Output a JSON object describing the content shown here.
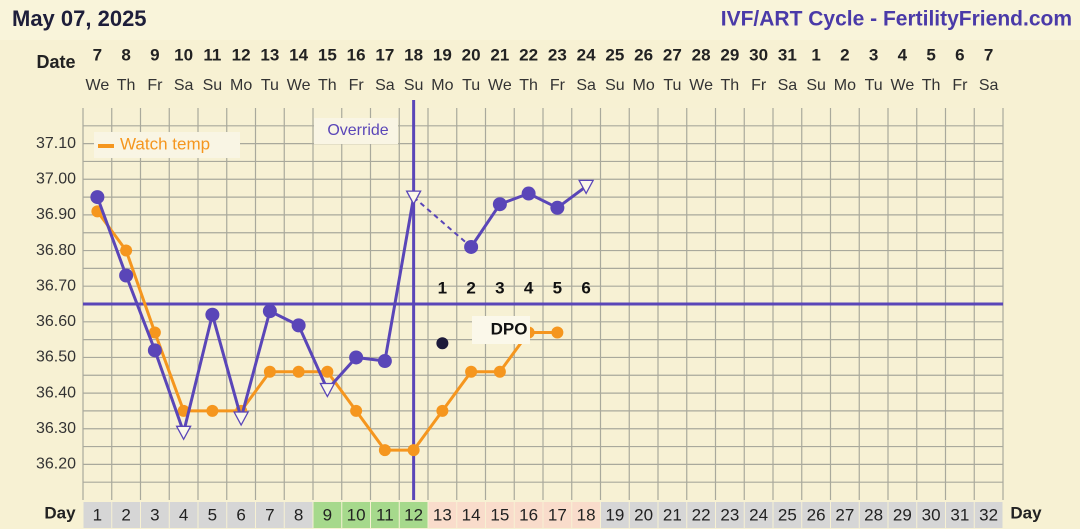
{
  "chart_data": {
    "type": "line",
    "title": "May 07, 2025",
    "subtitle": "IVF/ART Cycle - FertilityFriend.com",
    "date_label": "Date",
    "day_label": "Day",
    "override_label": "Override",
    "dpo_label": "DPO",
    "categories": [
      "1",
      "2",
      "3",
      "4",
      "5",
      "6",
      "7",
      "8",
      "9",
      "10",
      "11",
      "12",
      "13",
      "14",
      "15",
      "16",
      "17",
      "18",
      "19",
      "20",
      "21",
      "22",
      "23",
      "24",
      "25",
      "26",
      "27",
      "28",
      "29",
      "30",
      "31",
      "32"
    ],
    "dates": [
      "7",
      "8",
      "9",
      "10",
      "11",
      "12",
      "13",
      "14",
      "15",
      "16",
      "17",
      "18",
      "19",
      "20",
      "21",
      "22",
      "23",
      "24",
      "25",
      "26",
      "27",
      "28",
      "29",
      "30",
      "31",
      "1",
      "2",
      "3",
      "4",
      "5",
      "6",
      "7"
    ],
    "weekdays": [
      "We",
      "Th",
      "Fr",
      "Sa",
      "Su",
      "Mo",
      "Tu",
      "We",
      "Th",
      "Fr",
      "Sa",
      "Su",
      "Mo",
      "Tu",
      "We",
      "Th",
      "Fr",
      "Sa",
      "Su",
      "Mo",
      "Tu",
      "We",
      "Th",
      "Fr",
      "Sa",
      "Su",
      "Mo",
      "Tu",
      "We",
      "Th",
      "Fr",
      "Sa"
    ],
    "day_colors": [
      "#d6d6d6",
      "#d6d6d6",
      "#d6d6d6",
      "#d6d6d6",
      "#d6d6d6",
      "#d6d6d6",
      "#d6d6d6",
      "#d6d6d6",
      "#a6d98c",
      "#a6d98c",
      "#a6d98c",
      "#a6d98c",
      "#f9dccb",
      "#f9dccb",
      "#f9dccb",
      "#f9dccb",
      "#f9dccb",
      "#f9dccb",
      "#d6d6d6",
      "#d6d6d6",
      "#d6d6d6",
      "#d6d6d6",
      "#d6d6d6",
      "#d6d6d6",
      "#d6d6d6",
      "#d6d6d6",
      "#d6d6d6",
      "#d6d6d6",
      "#d6d6d6",
      "#d6d6d6",
      "#d6d6d6",
      "#d6d6d6"
    ],
    "dpo_values": [
      null,
      null,
      null,
      null,
      null,
      null,
      null,
      null,
      null,
      null,
      null,
      null,
      1,
      2,
      3,
      4,
      5,
      6,
      null,
      null,
      null,
      null,
      null,
      null,
      null,
      null,
      null,
      null,
      null,
      null,
      null,
      null
    ],
    "ylim": [
      36.1,
      37.2
    ],
    "yticks": [
      {
        "value": 36.2,
        "label": "36.20"
      },
      {
        "value": 36.3,
        "label": "36.30"
      },
      {
        "value": 36.4,
        "label": "36.40"
      },
      {
        "value": 36.5,
        "label": "36.50"
      },
      {
        "value": 36.6,
        "label": "36.60"
      },
      {
        "value": 36.7,
        "label": "36.70"
      },
      {
        "value": 36.8,
        "label": "36.80"
      },
      {
        "value": 36.9,
        "label": "36.90"
      },
      {
        "value": 37.0,
        "label": "37.00"
      },
      {
        "value": 37.1,
        "label": "37.10"
      }
    ],
    "grid": true,
    "coverline": 36.65,
    "coverline_color": "#5a46b8",
    "series": [
      {
        "color": "#5a46b8",
        "values": [
          36.95,
          36.73,
          36.52,
          36.29,
          36.62,
          36.33,
          36.63,
          36.59,
          36.41,
          36.5,
          36.49,
          36.95,
          null,
          36.81,
          36.93,
          36.96,
          36.92,
          36.98,
          null,
          null,
          null,
          null,
          null,
          null,
          null,
          null,
          null,
          null,
          null,
          null,
          null,
          null
        ],
        "open_triangles": [
          false,
          false,
          false,
          true,
          false,
          true,
          false,
          false,
          true,
          false,
          false,
          true,
          false,
          false,
          false,
          false,
          false,
          true,
          false,
          false,
          false,
          false,
          false,
          false,
          false,
          false,
          false,
          false,
          false,
          false,
          false,
          false
        ],
        "dashed_gaps": true
      },
      {
        "name": "Watch temp",
        "color": "#f5961e",
        "values": [
          36.91,
          36.8,
          36.57,
          36.35,
          36.35,
          36.35,
          36.46,
          36.46,
          36.46,
          36.35,
          36.24,
          36.24,
          36.35,
          36.46,
          36.46,
          36.57,
          36.57,
          null,
          null,
          null,
          null,
          null,
          null,
          null,
          null,
          null,
          null,
          null,
          null,
          null,
          null,
          null
        ]
      },
      {
        "color": "#1d1a3a",
        "values": [
          null,
          null,
          null,
          null,
          null,
          null,
          null,
          null,
          null,
          null,
          null,
          null,
          36.54,
          null,
          null,
          null,
          null,
          null,
          null,
          null,
          null,
          null,
          null,
          null,
          null,
          null,
          null,
          null,
          null,
          null,
          null,
          null
        ],
        "no_line": true
      }
    ]
  }
}
